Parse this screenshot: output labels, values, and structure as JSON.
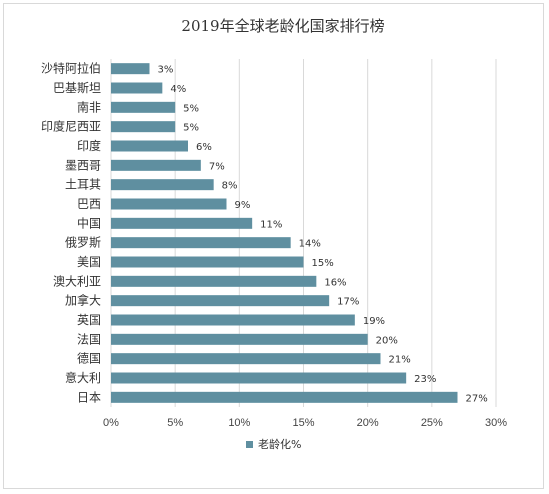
{
  "chart_data": {
    "type": "bar",
    "orientation": "horizontal",
    "title": "2019年全球老龄化国家排行榜",
    "categories": [
      "沙特阿拉伯",
      "巴基斯坦",
      "南非",
      "印度尼西亚",
      "印度",
      "墨西哥",
      "土耳其",
      "巴西",
      "中国",
      "俄罗斯",
      "美国",
      "澳大利亚",
      "加拿大",
      "英国",
      "法国",
      "德国",
      "意大利",
      "日本"
    ],
    "series": [
      {
        "name": "老龄化%",
        "values": [
          3,
          4,
          5,
          5,
          6,
          7,
          8,
          9,
          11,
          14,
          15,
          16,
          17,
          19,
          20,
          21,
          23,
          27
        ],
        "data_labels": [
          "3%",
          "4%",
          "5%",
          "5%",
          "6%",
          "7%",
          "8%",
          "9%",
          "11%",
          "14%",
          "15%",
          "16%",
          "17%",
          "19%",
          "20%",
          "21%",
          "23%",
          "27%"
        ]
      }
    ],
    "xlim": [
      0,
      30
    ],
    "x_ticks": [
      "0%",
      "5%",
      "10%",
      "15%",
      "20%",
      "25%",
      "30%"
    ],
    "xlabel": "",
    "ylabel": "",
    "grid": true,
    "legend_position": "bottom",
    "colors": {
      "bar": "#5f8fa0",
      "grid": "#d9d9d9"
    }
  }
}
